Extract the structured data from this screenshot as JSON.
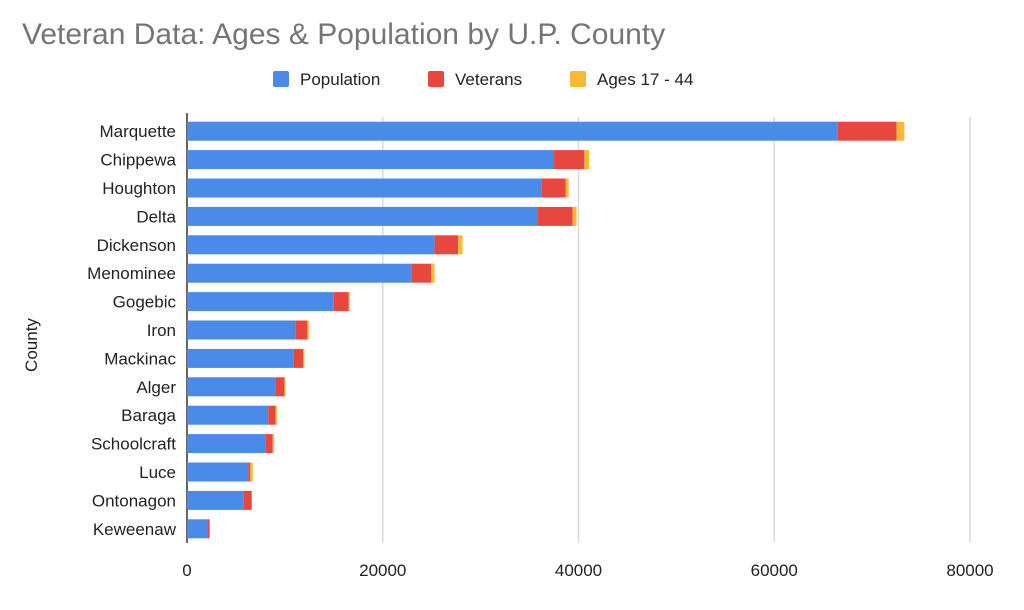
{
  "chart_data": {
    "type": "bar",
    "orientation": "horizontal",
    "stacked": true,
    "title": "Veteran Data: Ages & Population by U.P. County",
    "xlabel": "",
    "ylabel": "County",
    "xlim": [
      0,
      80000
    ],
    "xticks": [
      "0",
      "20000",
      "40000",
      "60000",
      "80000"
    ],
    "grid": true,
    "legend_position": "top",
    "categories": [
      "Marquette",
      "Chippewa",
      "Houghton",
      "Delta",
      "Dickenson",
      "Menominee",
      "Gogebic",
      "Iron",
      "Mackinac",
      "Alger",
      "Baraga",
      "Schoolcraft",
      "Luce",
      "Ontonagon",
      "Keweenaw"
    ],
    "series": [
      {
        "name": "Population",
        "color": "#4a8ae8",
        "values": [
          66500,
          37500,
          36200,
          35800,
          25300,
          22900,
          15000,
          11100,
          10900,
          9050,
          8300,
          8000,
          6270,
          5750,
          2100
        ]
      },
      {
        "name": "Veterans",
        "color": "#e8473f",
        "values": [
          6000,
          3100,
          2500,
          3600,
          2400,
          2050,
          1500,
          1200,
          950,
          900,
          750,
          750,
          200,
          850,
          200
        ]
      },
      {
        "name": "Ages 17 - 44",
        "color": "#f9b934",
        "values": [
          800,
          500,
          300,
          400,
          450,
          350,
          150,
          150,
          150,
          100,
          130,
          130,
          250,
          50,
          30
        ]
      }
    ]
  }
}
